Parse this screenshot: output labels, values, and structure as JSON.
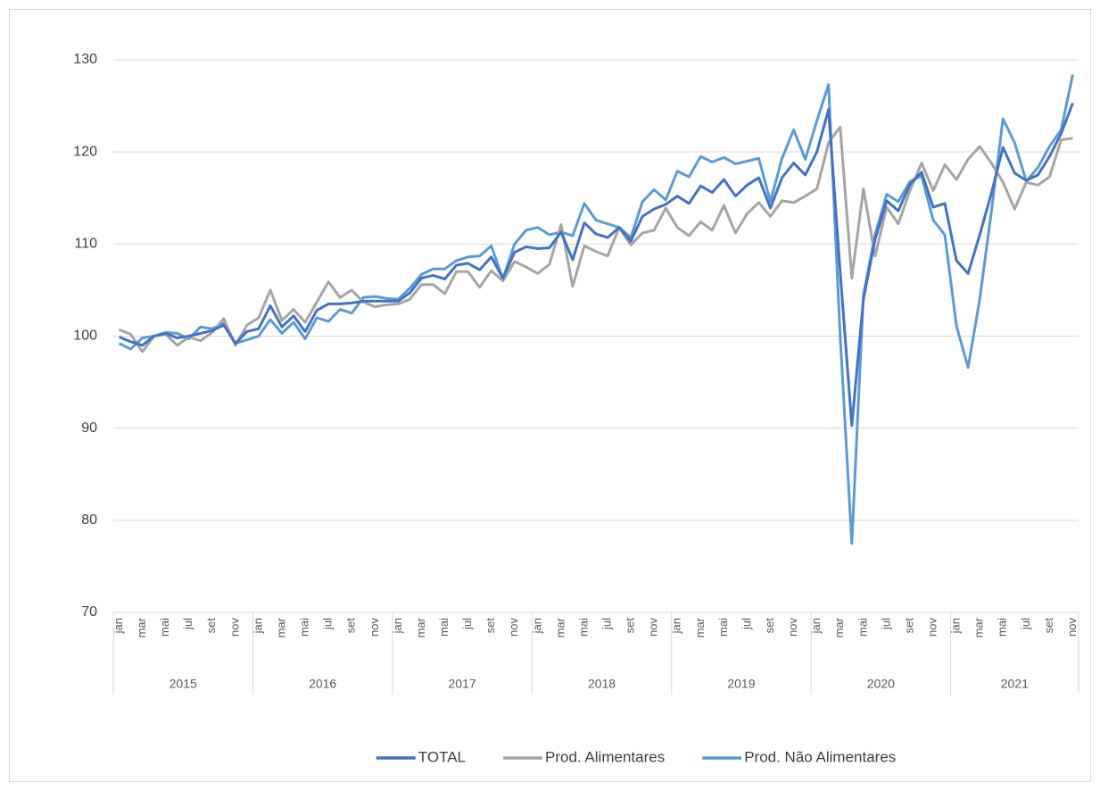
{
  "chart_data": {
    "type": "line",
    "groups": [
      {
        "name": "2015",
        "categories": [
          "jan",
          null,
          "mar",
          null,
          "mai",
          null,
          "jul",
          null,
          "set",
          null,
          "nov",
          null
        ]
      },
      {
        "name": "2016",
        "categories": [
          "jan",
          null,
          "mar",
          null,
          "mai",
          null,
          "jul",
          null,
          "set",
          null,
          "nov",
          null
        ]
      },
      {
        "name": "2017",
        "categories": [
          "jan",
          null,
          "mar",
          null,
          "mai",
          null,
          "jul",
          null,
          "set",
          null,
          "nov",
          null
        ]
      },
      {
        "name": "2018",
        "categories": [
          "jan",
          null,
          "mar",
          null,
          "mai",
          null,
          "jul",
          null,
          "set",
          null,
          "nov",
          null
        ]
      },
      {
        "name": "2019",
        "categories": [
          "jan",
          null,
          "mar",
          null,
          "mai",
          null,
          "jul",
          null,
          "set",
          null,
          "nov",
          null
        ]
      },
      {
        "name": "2020",
        "categories": [
          "jan",
          null,
          "mar",
          null,
          "mai",
          null,
          "jul",
          null,
          "set",
          null,
          "nov",
          null
        ]
      },
      {
        "name": "2021",
        "categories": [
          "jan",
          null,
          "mar",
          null,
          "mai",
          null,
          "jul",
          null,
          "set",
          null,
          "nov"
        ]
      }
    ],
    "series": [
      {
        "name": "TOTAL",
        "color": "#4472c4",
        "values": [
          99.9,
          99.4,
          99.0,
          100.0,
          100.3,
          99.8,
          100.0,
          100.3,
          100.6,
          101.2,
          99.2,
          100.5,
          100.8,
          103.3,
          101.0,
          102.2,
          100.5,
          102.8,
          103.5,
          103.5,
          103.6,
          103.8,
          103.8,
          103.8,
          103.8,
          104.7,
          106.3,
          106.6,
          106.2,
          107.7,
          107.9,
          107.2,
          108.6,
          106.3,
          109.1,
          109.7,
          109.5,
          109.6,
          111.3,
          108.3,
          112.3,
          111.1,
          110.7,
          111.8,
          110.3,
          113.0,
          113.8,
          114.3,
          115.2,
          114.4,
          116.3,
          115.6,
          117.0,
          115.2,
          116.4,
          117.2,
          113.9,
          117.2,
          118.8,
          117.5,
          120.0,
          124.6,
          107.0,
          90.3,
          104.0,
          110.5,
          114.7,
          113.6,
          116.5,
          117.8,
          114.0,
          114.4,
          108.2,
          106.8,
          111.0,
          115.5,
          120.5,
          117.7,
          116.9,
          117.5,
          119.5,
          122.0,
          125.3
        ]
      },
      {
        "name": "Prod. Alimentares",
        "color": "#a5a5a5",
        "values": [
          100.7,
          100.2,
          98.3,
          100.0,
          100.2,
          99.0,
          99.9,
          99.5,
          100.4,
          101.9,
          99.0,
          101.2,
          102.0,
          105.0,
          101.7,
          102.9,
          101.5,
          103.7,
          105.9,
          104.2,
          105.0,
          103.7,
          103.2,
          103.4,
          103.5,
          104.0,
          105.6,
          105.6,
          104.6,
          107.0,
          107.0,
          105.3,
          107.1,
          106.0,
          108.1,
          107.5,
          106.8,
          107.8,
          112.1,
          105.4,
          109.8,
          109.2,
          108.7,
          111.8,
          109.9,
          111.2,
          111.5,
          113.9,
          111.8,
          110.9,
          112.4,
          111.5,
          114.2,
          111.2,
          113.3,
          114.5,
          113.0,
          114.7,
          114.5,
          115.2,
          116.0,
          121.0,
          122.7,
          106.3,
          116.0,
          108.7,
          114.0,
          112.2,
          115.8,
          118.8,
          115.8,
          118.6,
          117.0,
          119.2,
          120.6,
          118.8,
          116.7,
          113.8,
          116.7,
          116.4,
          117.3,
          121.3,
          121.5
        ]
      },
      {
        "name": "Prod. Não Alimentares",
        "color": "#5b9bd5",
        "values": [
          99.2,
          98.6,
          99.8,
          100.0,
          100.4,
          100.3,
          99.7,
          101.0,
          100.8,
          101.4,
          99.2,
          99.6,
          100.0,
          101.8,
          100.3,
          101.5,
          99.7,
          102.0,
          101.6,
          102.9,
          102.5,
          104.2,
          104.3,
          104.1,
          104.0,
          105.2,
          106.7,
          107.3,
          107.3,
          108.2,
          108.6,
          108.7,
          109.8,
          106.2,
          110.0,
          111.5,
          111.8,
          111.0,
          111.3,
          110.9,
          114.4,
          112.6,
          112.2,
          111.8,
          110.7,
          114.6,
          115.9,
          114.8,
          117.9,
          117.3,
          119.5,
          118.9,
          119.4,
          118.7,
          119.0,
          119.3,
          114.6,
          119.3,
          122.4,
          119.2,
          123.4,
          127.3,
          100.0,
          77.5,
          104.5,
          111.0,
          115.4,
          114.6,
          116.8,
          117.4,
          112.6,
          111.0,
          101.1,
          96.6,
          104.0,
          113.5,
          123.6,
          121.0,
          116.8,
          118.3,
          120.6,
          122.4,
          128.4
        ]
      }
    ],
    "ylim": [
      70,
      130
    ],
    "yticks": [
      70,
      80,
      90,
      100,
      110,
      120,
      130
    ],
    "grid": true,
    "legend": "bottom"
  }
}
